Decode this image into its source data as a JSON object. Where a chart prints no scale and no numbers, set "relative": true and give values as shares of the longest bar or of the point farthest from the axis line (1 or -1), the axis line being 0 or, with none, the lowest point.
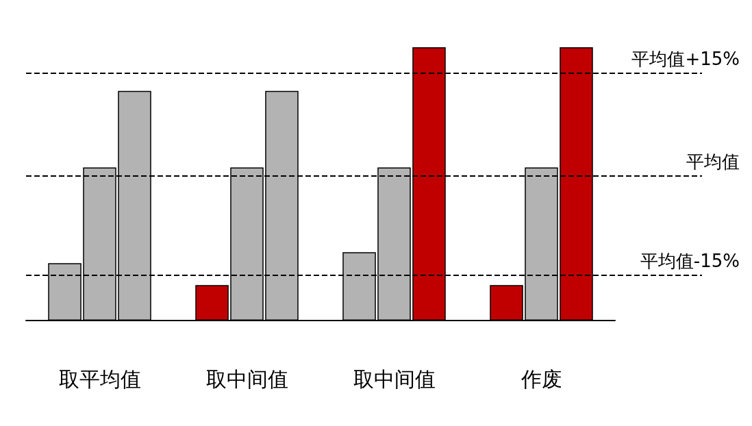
{
  "chart_data": {
    "type": "bar",
    "relative": true,
    "categories": [
      "取平均值",
      "取中间值",
      "取中间值",
      "作废"
    ],
    "series": [
      {
        "colors": [
          "#b3b3b3",
          "#c00000",
          "#b3b3b3",
          "#c00000"
        ],
        "values": [
          0.21,
          0.13,
          0.25,
          0.13
        ]
      },
      {
        "colors": [
          "#b3b3b3",
          "#b3b3b3",
          "#b3b3b3",
          "#b3b3b3"
        ],
        "values": [
          0.56,
          0.56,
          0.56,
          0.56
        ]
      },
      {
        "colors": [
          "#b3b3b3",
          "#b3b3b3",
          "#c00000",
          "#c00000"
        ],
        "values": [
          0.84,
          0.84,
          1,
          1
        ]
      }
    ],
    "ref_lines": [
      {
        "axis": "y",
        "value": 0.905,
        "label": "平均值+15%",
        "line_style": "dashed",
        "color": "#000000"
      },
      {
        "axis": "y",
        "value": 0.53,
        "label": "平均值",
        "line_style": "dashed",
        "color": "#000000"
      },
      {
        "axis": "y",
        "value": 0.165,
        "label": "平均值-15%",
        "line_style": "dashed",
        "color": "#000000"
      }
    ]
  }
}
